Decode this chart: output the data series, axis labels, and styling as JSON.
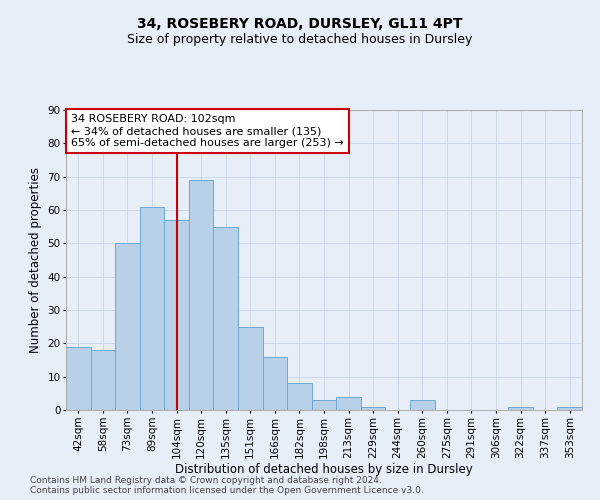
{
  "title": "34, ROSEBERY ROAD, DURSLEY, GL11 4PT",
  "subtitle": "Size of property relative to detached houses in Dursley",
  "xlabel": "Distribution of detached houses by size in Dursley",
  "ylabel": "Number of detached properties",
  "categories": [
    "42sqm",
    "58sqm",
    "73sqm",
    "89sqm",
    "104sqm",
    "120sqm",
    "135sqm",
    "151sqm",
    "166sqm",
    "182sqm",
    "198sqm",
    "213sqm",
    "229sqm",
    "244sqm",
    "260sqm",
    "275sqm",
    "291sqm",
    "306sqm",
    "322sqm",
    "337sqm",
    "353sqm"
  ],
  "values": [
    19,
    18,
    50,
    61,
    57,
    69,
    55,
    25,
    16,
    8,
    3,
    4,
    1,
    0,
    3,
    0,
    0,
    0,
    1,
    0,
    1
  ],
  "bar_color": "#b8d0e8",
  "bar_edge_color": "#6aaad4",
  "vline_x": 4,
  "vline_color": "#cc0000",
  "annotation_text": "34 ROSEBERY ROAD: 102sqm\n← 34% of detached houses are smaller (135)\n65% of semi-detached houses are larger (253) →",
  "annotation_box_color": "#ffffff",
  "annotation_box_edge": "#cc0000",
  "ylim": [
    0,
    90
  ],
  "yticks": [
    0,
    10,
    20,
    30,
    40,
    50,
    60,
    70,
    80,
    90
  ],
  "grid_color": "#c8d4e8",
  "background_color": "#e8eef8",
  "footer_line1": "Contains HM Land Registry data © Crown copyright and database right 2024.",
  "footer_line2": "Contains public sector information licensed under the Open Government Licence v3.0.",
  "title_fontsize": 10,
  "subtitle_fontsize": 9,
  "axis_label_fontsize": 8.5,
  "tick_fontsize": 7.5,
  "annotation_fontsize": 8,
  "footer_fontsize": 6.5
}
